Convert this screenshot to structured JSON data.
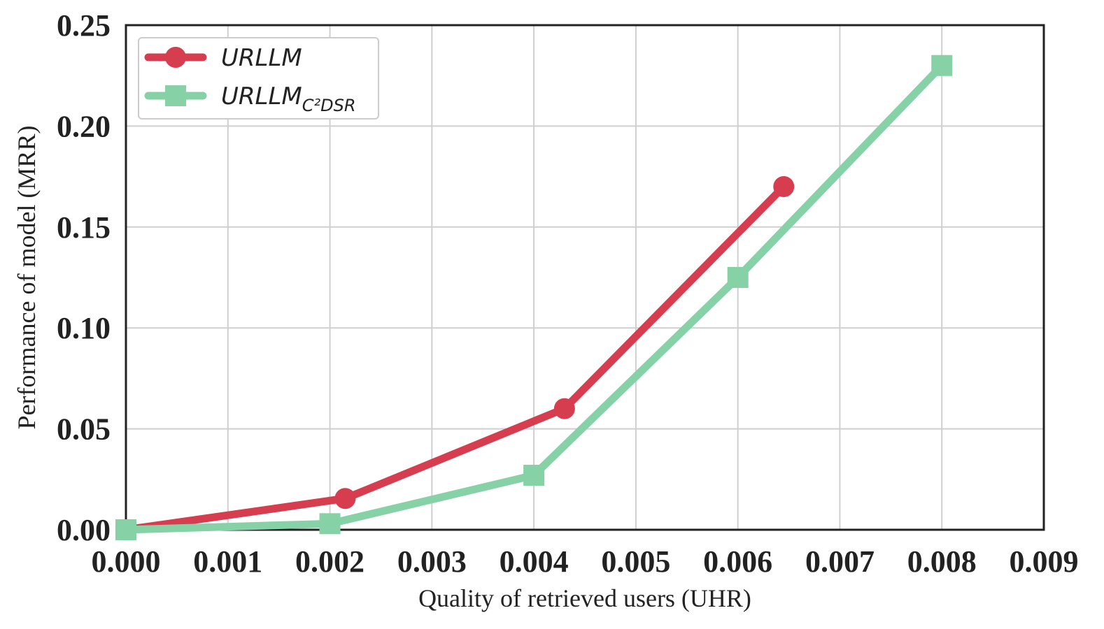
{
  "chart_data": {
    "type": "line",
    "xlabel": "Quality of retrieved users (UHR)",
    "ylabel": "Performance of model (MRR)",
    "xlim": [
      0.0,
      0.009
    ],
    "ylim": [
      0.0,
      0.25
    ],
    "xticks": [
      "0.000",
      "0.001",
      "0.002",
      "0.003",
      "0.004",
      "0.005",
      "0.006",
      "0.007",
      "0.008",
      "0.009"
    ],
    "yticks": [
      "0.00",
      "0.05",
      "0.10",
      "0.15",
      "0.20",
      "0.25"
    ],
    "grid": true,
    "legend_position": "top-left",
    "series": [
      {
        "name": "URLLM",
        "name_base": "URLLM",
        "name_sub": "",
        "color": "#d63e4f",
        "marker": "circle",
        "x": [
          0.0,
          0.00215,
          0.0043,
          0.00645
        ],
        "y": [
          0.0,
          0.0155,
          0.06,
          0.17
        ]
      },
      {
        "name": "URLLM_C²DSR",
        "name_base": "URLLM",
        "name_sub": "C²DSR",
        "color": "#86d1a6",
        "marker": "square",
        "x": [
          0.0,
          0.002,
          0.004,
          0.006,
          0.008
        ],
        "y": [
          0.0,
          0.003,
          0.027,
          0.125,
          0.23
        ]
      }
    ]
  }
}
